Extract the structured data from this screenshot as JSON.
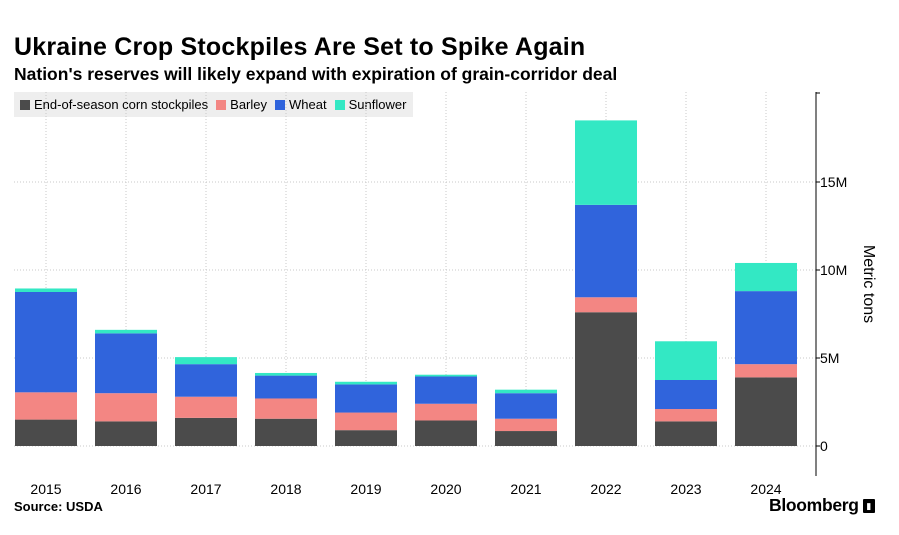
{
  "header": {
    "title": "Ukraine Crop Stockpiles Are Set to Spike Again",
    "subtitle": "Nation's reserves will likely expand with expiration of grain-corridor deal"
  },
  "footer": {
    "source": "Source: USDA",
    "brand": "Bloomberg",
    "brand_icon": "terminal-icon"
  },
  "colors": {
    "corn": "#4b4b4b",
    "barley": "#f38683",
    "wheat": "#3064dc",
    "sunflower": "#33e8c4",
    "grid": "#c8c8c8",
    "axis": "#000000"
  },
  "chart_data": {
    "type": "bar",
    "stacked": true,
    "categories": [
      "2015",
      "2016",
      "2017",
      "2018",
      "2019",
      "2020",
      "2021",
      "2022",
      "2023",
      "2024"
    ],
    "series": [
      {
        "name": "End-of-season corn stockpiles",
        "color": "#4b4b4b",
        "values": [
          1.5,
          1.4,
          1.6,
          1.55,
          0.9,
          1.45,
          0.85,
          7.6,
          1.4,
          3.9
        ]
      },
      {
        "name": "Barley",
        "color": "#f38683",
        "values": [
          1.55,
          1.6,
          1.2,
          1.15,
          1.0,
          0.95,
          0.7,
          0.85,
          0.7,
          0.75
        ]
      },
      {
        "name": "Wheat",
        "color": "#3064dc",
        "values": [
          5.7,
          3.4,
          1.85,
          1.3,
          1.6,
          1.55,
          1.45,
          5.25,
          1.65,
          4.15
        ]
      },
      {
        "name": "Sunflower",
        "color": "#33e8c4",
        "values": [
          0.2,
          0.2,
          0.4,
          0.15,
          0.15,
          0.1,
          0.2,
          4.8,
          2.2,
          1.6
        ]
      }
    ],
    "ylabel": "Metric tons",
    "xlabel": "",
    "ylim": [
      0,
      20
    ],
    "yticks": [
      0,
      5,
      10,
      15
    ],
    "ytick_labels": [
      "0",
      "5M",
      "10M",
      "15M"
    ],
    "unit": "million metric tons",
    "legend_position": "top-left",
    "grid": true,
    "y_axis_side": "right"
  }
}
